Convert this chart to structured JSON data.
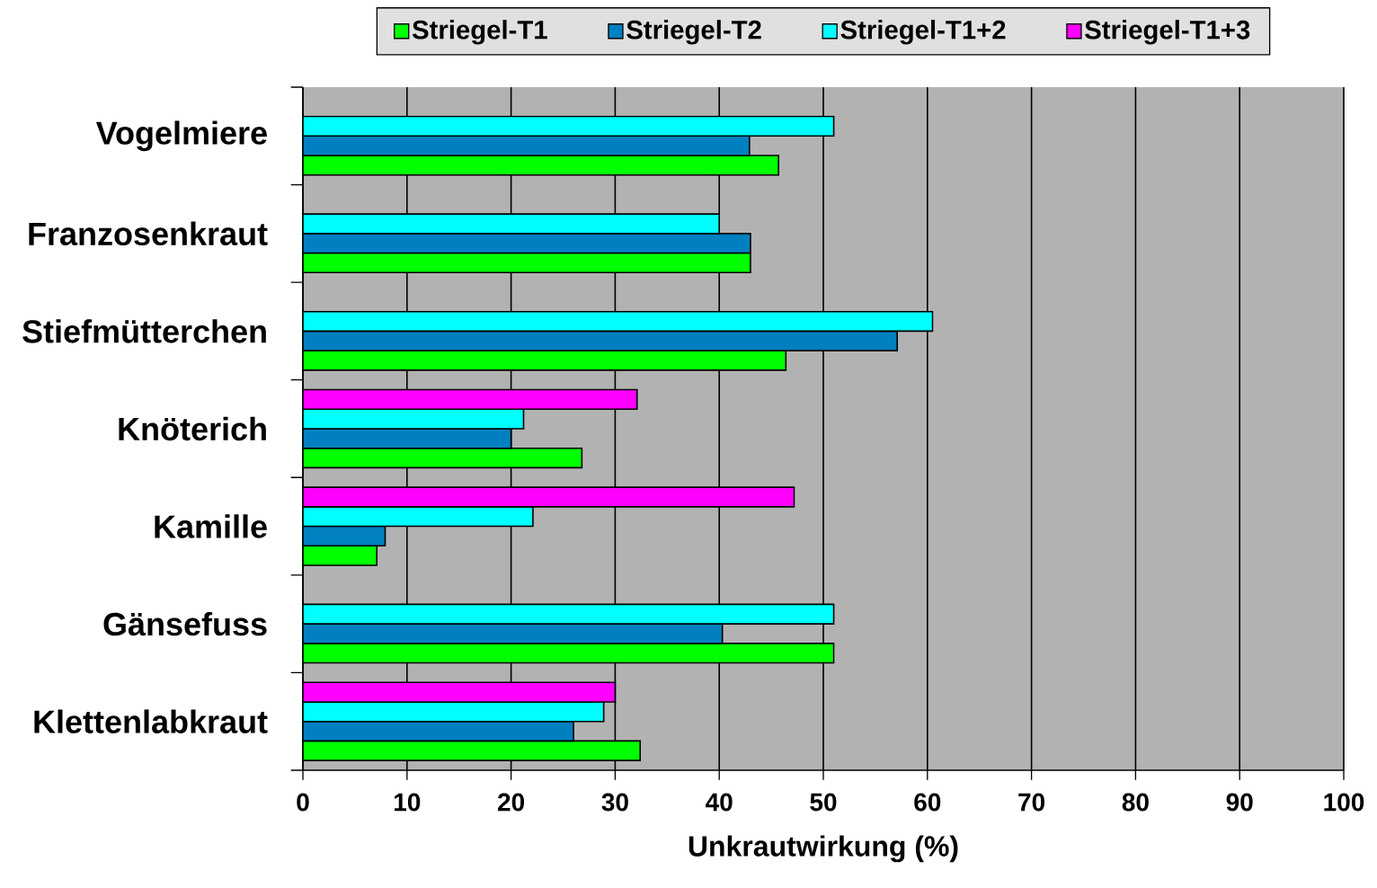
{
  "chart_data": {
    "type": "bar",
    "orientation": "horizontal",
    "xlabel": "Unkrautwirkung (%)",
    "categories": [
      "Vogelmiere",
      "Franzosenkraut",
      "Stiefmütterchen",
      "Knöterich",
      "Kamille",
      "Gänsefuss",
      "Klettenlabkraut"
    ],
    "series": [
      {
        "name": "Striegel-T1",
        "color": "#00ff00",
        "values": [
          45.7,
          43,
          46.4,
          26.8,
          7.1,
          51,
          32.4
        ]
      },
      {
        "name": "Striegel-T2",
        "color": "#0080c0",
        "values": [
          42.9,
          43,
          57.1,
          20,
          7.9,
          40.3,
          26
        ]
      },
      {
        "name": "Striegel-T1+2",
        "color": "#00ffff",
        "values": [
          51,
          40,
          60.5,
          21.2,
          22.1,
          51,
          28.9
        ]
      },
      {
        "name": "Striegel-T1+3",
        "color": "#ff00ff",
        "values": [
          null,
          null,
          null,
          32.1,
          47.2,
          null,
          30
        ]
      }
    ],
    "xlim": [
      0,
      100
    ],
    "xticks": [
      0,
      10,
      20,
      30,
      40,
      50,
      60,
      70,
      80,
      90,
      100
    ],
    "grid": "x",
    "legend": "top"
  }
}
